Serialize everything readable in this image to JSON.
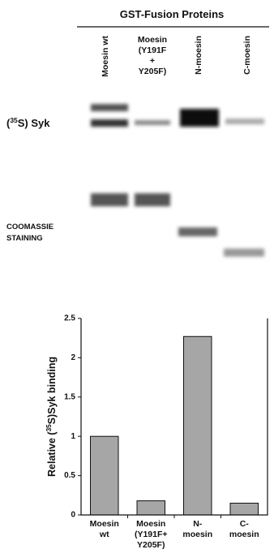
{
  "figure": {
    "header": "GST-Fusion Proteins",
    "lanes": [
      [
        "Moesin wt"
      ],
      [
        "Moesin",
        "(Y191F",
        "+",
        "Y205F)"
      ],
      [
        "N-moesin"
      ],
      [
        "C-moesin"
      ]
    ],
    "syk_label": {
      "prefix": "(",
      "sup": "35",
      "suffix": "S) Syk"
    },
    "stain_label": [
      "COOMASSIE",
      "STAINING"
    ]
  },
  "chart_data": {
    "type": "bar",
    "y_label": {
      "prefix": "Relative (",
      "sup": "35",
      "suffix": "S)Syk binding"
    },
    "categories": [
      [
        "Moesin",
        "wt"
      ],
      [
        "Moesin",
        "(Y191F+",
        "Y205F)"
      ],
      [
        "N-",
        "moesin"
      ],
      [
        "C-",
        "moesin"
      ]
    ],
    "values": [
      1.0,
      0.18,
      2.27,
      0.15
    ],
    "color": "#a6a6a6",
    "ylim": [
      0,
      2.5
    ],
    "yticks": [
      0,
      0.5,
      1,
      1.5,
      2,
      2.5
    ]
  }
}
